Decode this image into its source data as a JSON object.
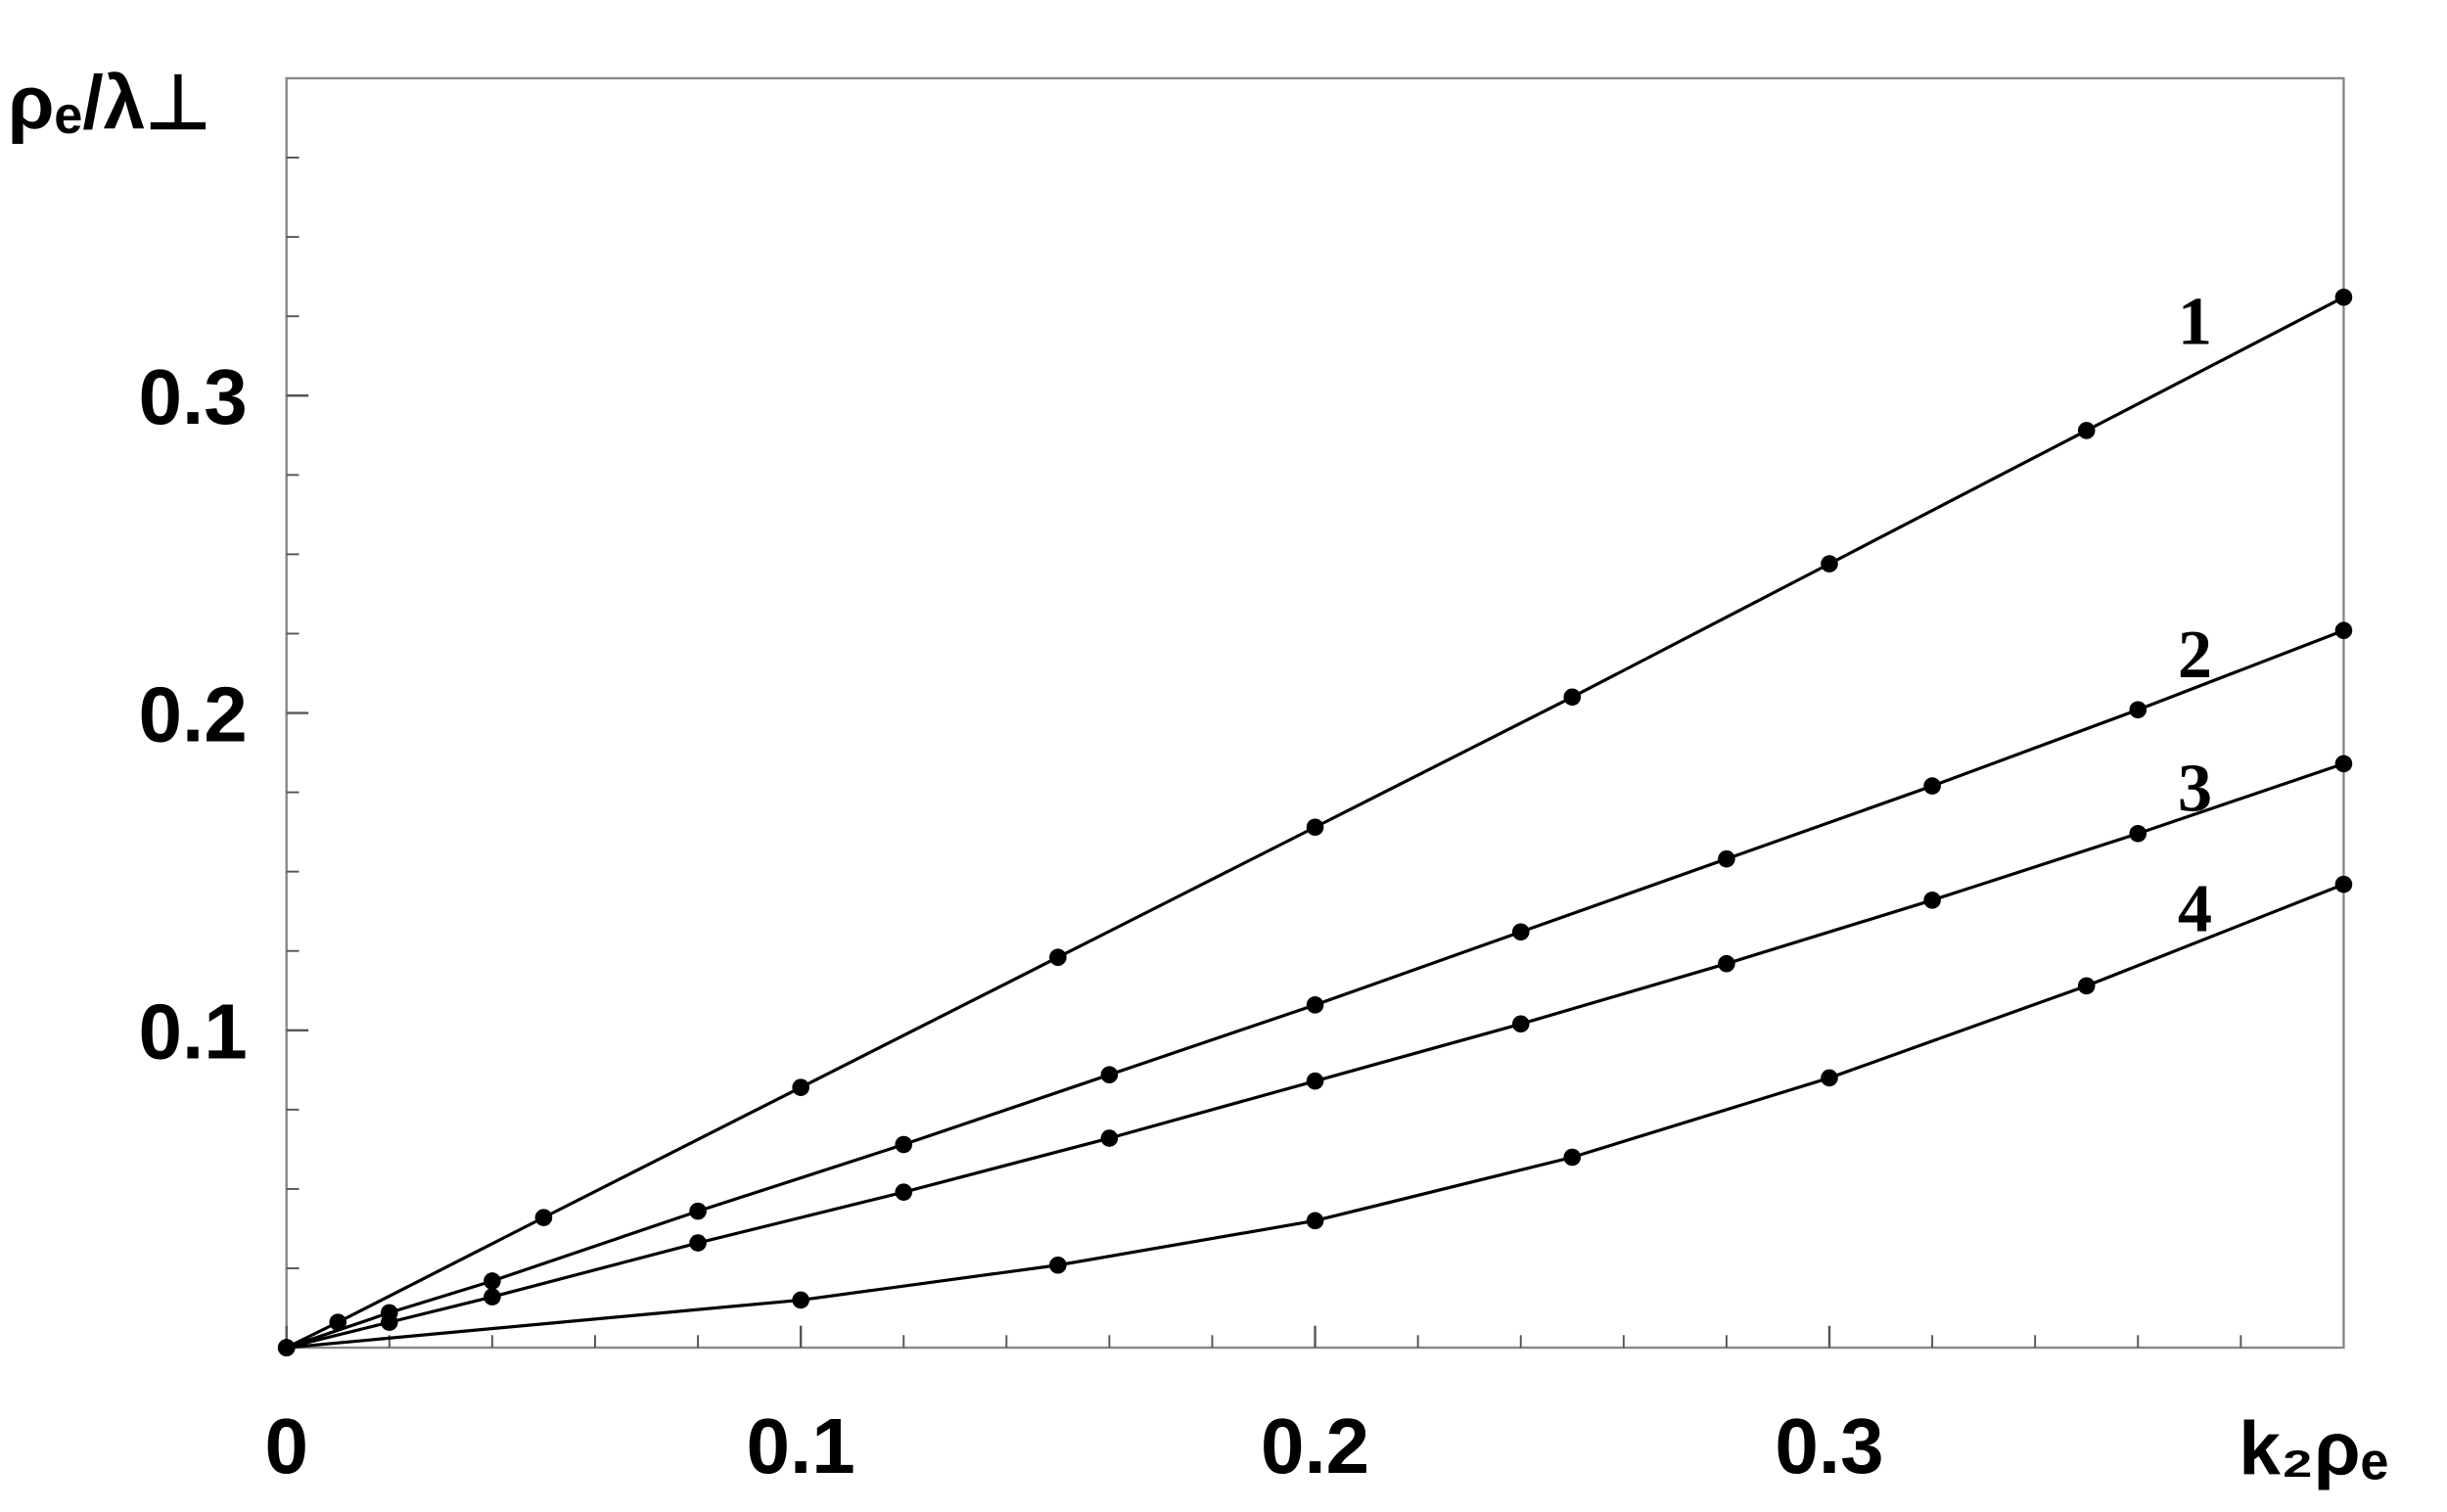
{
  "chart_data": {
    "type": "line",
    "x_label": "k₂ρₑ",
    "y_label": "ρₑ/λ⊥",
    "xlim": [
      0,
      0.4
    ],
    "ylim": [
      0,
      0.4
    ],
    "xticks": [
      0,
      0.1,
      0.2,
      0.3
    ],
    "yticks": [
      0.1,
      0.2,
      0.3
    ],
    "xticks_minor": [
      0.02,
      0.04,
      0.06,
      0.08,
      0.12,
      0.14,
      0.16,
      0.18,
      0.22,
      0.24,
      0.26,
      0.28,
      0.32,
      0.34,
      0.36,
      0.38
    ],
    "yticks_minor": [
      0.025,
      0.05,
      0.075,
      0.125,
      0.15,
      0.175,
      0.225,
      0.25,
      0.275,
      0.325,
      0.35,
      0.375
    ],
    "color": "#000000",
    "series": [
      {
        "name": "1",
        "x": [
          0,
          0.01,
          0.05,
          0.1,
          0.15,
          0.2,
          0.25,
          0.3,
          0.35,
          0.4
        ],
        "values": [
          0,
          0.008,
          0.041,
          0.082,
          0.123,
          0.164,
          0.205,
          0.247,
          0.289,
          0.331
        ]
      },
      {
        "name": "2",
        "x": [
          0,
          0.02,
          0.04,
          0.08,
          0.12,
          0.16,
          0.2,
          0.24,
          0.28,
          0.32,
          0.36,
          0.4
        ],
        "values": [
          0,
          0.011,
          0.021,
          0.043,
          0.064,
          0.086,
          0.108,
          0.131,
          0.154,
          0.177,
          0.201,
          0.226
        ]
      },
      {
        "name": "3",
        "x": [
          0,
          0.02,
          0.04,
          0.08,
          0.12,
          0.16,
          0.2,
          0.24,
          0.28,
          0.32,
          0.36,
          0.4
        ],
        "values": [
          0,
          0.008,
          0.016,
          0.033,
          0.049,
          0.066,
          0.084,
          0.102,
          0.121,
          0.141,
          0.162,
          0.184
        ]
      },
      {
        "name": "4",
        "x": [
          0,
          0.1,
          0.15,
          0.2,
          0.25,
          0.3,
          0.35,
          0.4
        ],
        "values": [
          0,
          0.015,
          0.026,
          0.04,
          0.06,
          0.085,
          0.114,
          0.146
        ]
      }
    ]
  }
}
